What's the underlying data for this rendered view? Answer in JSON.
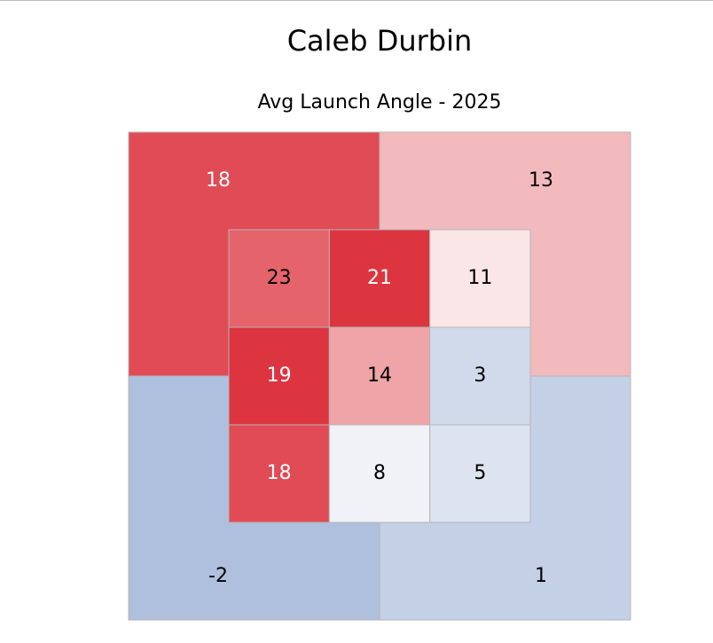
{
  "chart_data": {
    "type": "zone",
    "title": "Caleb Durbin",
    "subtitle": "Avg Launch Angle - 2025",
    "outer": {
      "values": [
        18,
        13,
        -2,
        1
      ],
      "colors": [
        "#e04b55",
        "#f2babd",
        "#aec0dd",
        "#c4d0e6"
      ],
      "label_colors": [
        "#ffffff",
        "#000000",
        "#000000",
        "#000000"
      ]
    },
    "inner": {
      "values": [
        23,
        21,
        11,
        19,
        14,
        3,
        18,
        8,
        5
      ],
      "colors": [
        "#e5636b",
        "#dc3540",
        "#fae6e7",
        "#dc3540",
        "#efa4a8",
        "#d0daea",
        "#e04b55",
        "#f0f2f8",
        "#dde3ef"
      ],
      "label_colors": [
        "#000000",
        "#ffffff",
        "#000000",
        "#ffffff",
        "#000000",
        "#000000",
        "#ffffff",
        "#000000",
        "#000000"
      ]
    }
  }
}
